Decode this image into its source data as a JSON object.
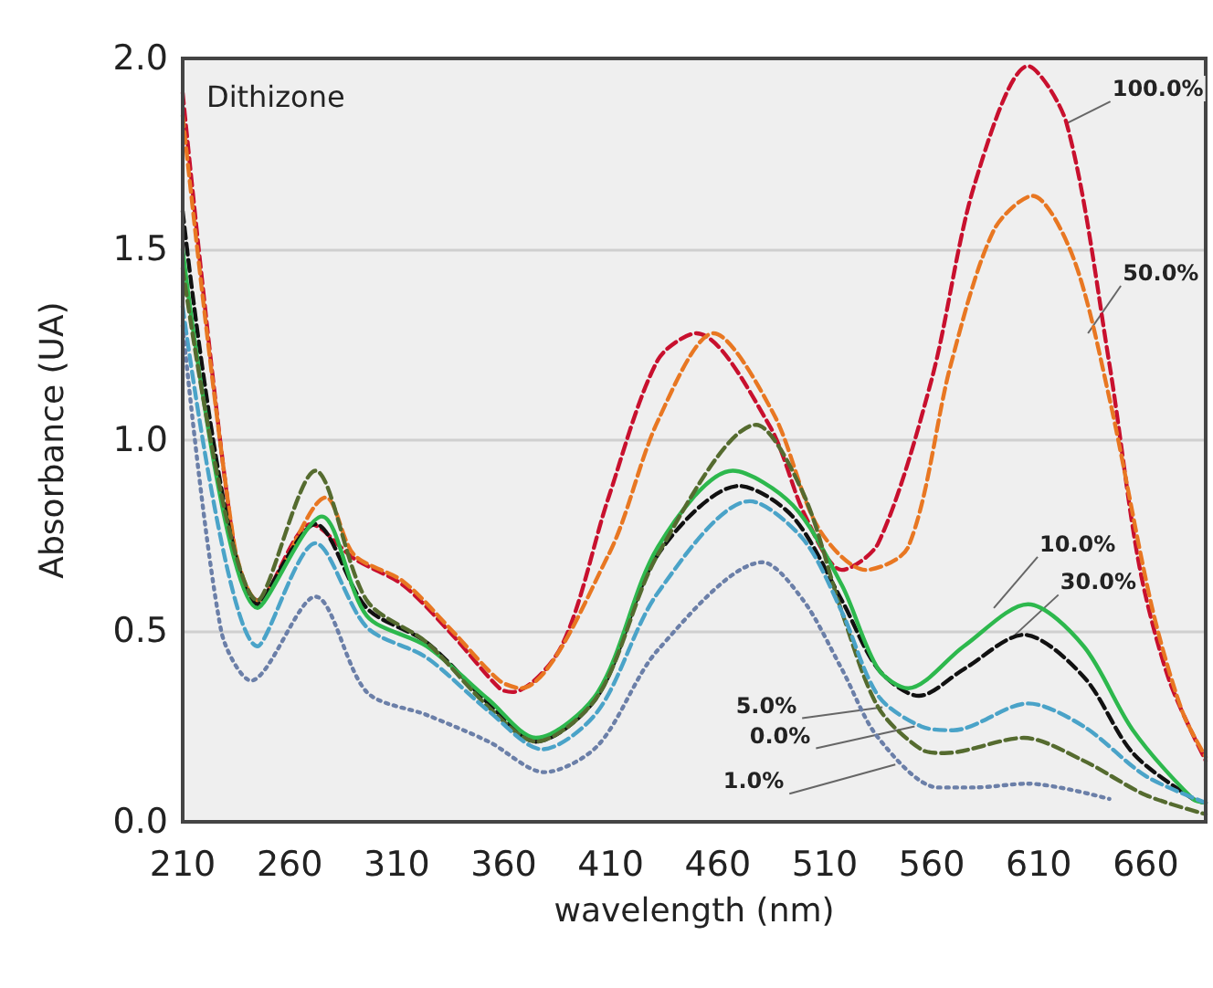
{
  "chart_data": {
    "type": "line",
    "title": "Dithizone",
    "xlabel": "wavelength (nm)",
    "ylabel": "Absorbance (UA)",
    "xlim": [
      210,
      688
    ],
    "xticks": [
      210,
      260,
      310,
      360,
      410,
      460,
      510,
      560,
      610,
      660
    ],
    "ylim": [
      0,
      2
    ],
    "yticks": [
      {
        "value": 0,
        "label": "0.0"
      },
      {
        "value": 0.5,
        "label": "0.5"
      },
      {
        "value": 1,
        "label": "1.0"
      },
      {
        "value": 1.5,
        "label": "1.5"
      },
      {
        "value": 2,
        "label": "2.0"
      }
    ],
    "grid": "y",
    "marker": "none",
    "series": [
      {
        "color": "#c8102e",
        "line_style": "dashed",
        "x": [
          210,
          234,
          245,
          270,
          290,
          313,
          336,
          358,
          364,
          387,
          409,
          432,
          450,
          484,
          501,
          518,
          535,
          560,
          580,
          605,
          623,
          643,
          657,
          671,
          688
        ],
        "values": [
          1.91,
          0.72,
          0.58,
          0.78,
          0.69,
          0.62,
          0.49,
          0.35,
          0.34,
          0.46,
          0.85,
          1.21,
          1.28,
          1.04,
          0.8,
          0.66,
          0.73,
          1.16,
          1.67,
          1.98,
          1.83,
          1.2,
          0.67,
          0.37,
          0.16
        ]
      },
      {
        "color": "#e87722",
        "line_style": "dashed",
        "x": [
          210,
          234,
          245,
          277,
          290,
          313,
          336,
          358,
          368,
          409,
          432,
          458,
          486,
          507,
          529,
          549,
          569,
          589,
          607,
          626,
          643,
          663,
          677,
          688
        ],
        "values": [
          1.85,
          0.73,
          0.58,
          0.85,
          0.7,
          0.63,
          0.5,
          0.37,
          0.35,
          0.7,
          1.05,
          1.28,
          1.07,
          0.77,
          0.66,
          0.72,
          1.2,
          1.55,
          1.64,
          1.48,
          1.11,
          0.56,
          0.29,
          0.17
        ]
      },
      {
        "color": "#111111",
        "line_style": "dashed",
        "x": [
          210,
          245,
          272,
          296,
          324,
          353,
          375,
          404,
          432,
          470,
          495,
          518,
          535,
          554,
          575,
          603,
          631,
          654,
          682,
          688
        ],
        "values": [
          1.6,
          0.57,
          0.78,
          0.56,
          0.47,
          0.31,
          0.21,
          0.33,
          0.7,
          0.88,
          0.8,
          0.58,
          0.4,
          0.33,
          0.4,
          0.49,
          0.38,
          0.18,
          0.06,
          0.05
        ]
      },
      {
        "color": "#2db84d",
        "line_style": "solid",
        "x": [
          210,
          245,
          275,
          296,
          324,
          353,
          375,
          404,
          432,
          467,
          495,
          518,
          535,
          549,
          575,
          605,
          631,
          654,
          682,
          688
        ],
        "values": [
          1.5,
          0.56,
          0.8,
          0.54,
          0.46,
          0.32,
          0.22,
          0.34,
          0.72,
          0.92,
          0.83,
          0.62,
          0.4,
          0.35,
          0.46,
          0.57,
          0.46,
          0.24,
          0.06,
          0.05
        ]
      },
      {
        "color": "#556b2f",
        "line_style": "dashed",
        "x": [
          210,
          245,
          272,
          296,
          324,
          353,
          375,
          404,
          432,
          478,
          500,
          518,
          535,
          555,
          566,
          603,
          631,
          660,
          688
        ],
        "values": [
          1.45,
          0.58,
          0.92,
          0.58,
          0.47,
          0.3,
          0.21,
          0.33,
          0.7,
          1.04,
          0.86,
          0.55,
          0.3,
          0.19,
          0.18,
          0.22,
          0.16,
          0.07,
          0.02
        ]
      },
      {
        "color": "#4aa3c8",
        "line_style": "dashed",
        "x": [
          210,
          245,
          272,
          296,
          324,
          353,
          378,
          404,
          432,
          475,
          500,
          518,
          535,
          555,
          570,
          605,
          631,
          660,
          688
        ],
        "values": [
          1.35,
          0.46,
          0.73,
          0.51,
          0.43,
          0.29,
          0.19,
          0.29,
          0.6,
          0.84,
          0.74,
          0.55,
          0.33,
          0.25,
          0.24,
          0.31,
          0.25,
          0.12,
          0.05
        ]
      },
      {
        "color": "#6b7fa8",
        "line_style": "dotted",
        "x": [
          210,
          228,
          242,
          272,
          296,
          324,
          353,
          379,
          404,
          432,
          481,
          500,
          518,
          535,
          563,
          580,
          605,
          643
        ],
        "values": [
          1.3,
          0.5,
          0.37,
          0.59,
          0.34,
          0.28,
          0.21,
          0.13,
          0.2,
          0.45,
          0.68,
          0.58,
          0.4,
          0.22,
          0.09,
          0.09,
          0.1,
          0.06
        ]
      }
    ],
    "annotations": [
      {
        "text": "100.0%",
        "x": 623,
        "y": 1.83
      },
      {
        "text": "50.0%",
        "x": 633,
        "y": 1.28
      },
      {
        "text": "10.0%",
        "x": 589,
        "y": 0.56
      },
      {
        "text": "30.0%",
        "x": 597,
        "y": 0.48
      },
      {
        "text": "5.0%",
        "x": 537,
        "y": 0.3
      },
      {
        "text": "0.0%",
        "x": 552,
        "y": 0.25
      },
      {
        "text": "1.0%",
        "x": 543,
        "y": 0.15
      }
    ]
  }
}
